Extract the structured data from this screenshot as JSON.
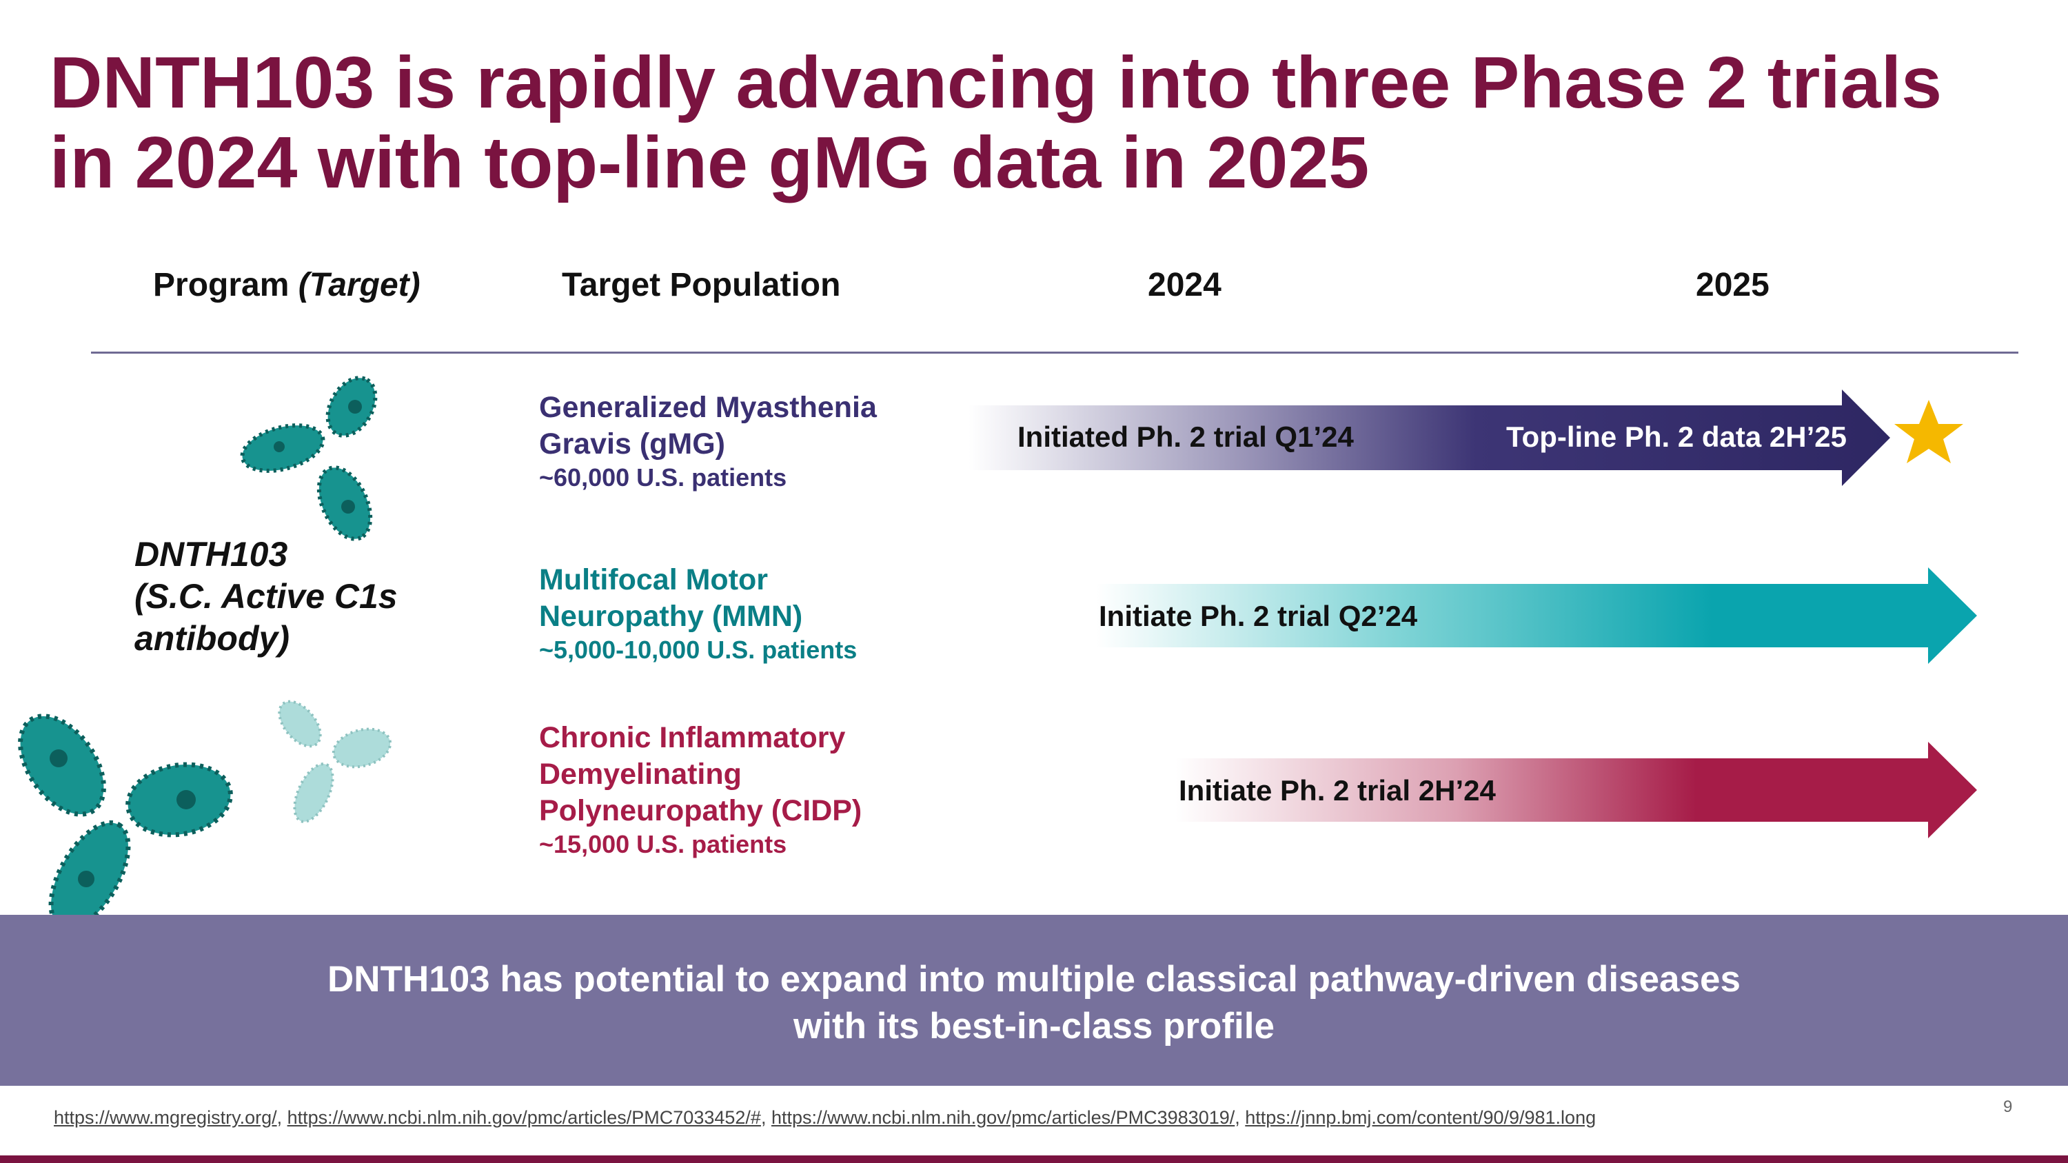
{
  "title": {
    "line1": "DNTH103 is rapidly advancing into three Phase 2 trials",
    "line2": "in 2024 with top-line gMG data in 2025"
  },
  "headers": {
    "program": "Program",
    "program_target": "(Target)",
    "population": "Target Population",
    "year1": "2024",
    "year2": "2025"
  },
  "program": {
    "line1": "DNTH103",
    "line2": "(S.C. Active C1s",
    "line3": "antibody)"
  },
  "populations": [
    {
      "name_line1": "Generalized Myasthenia",
      "name_line2": "Gravis (gMG)",
      "patients": "~60,000 U.S. patients",
      "color": "#3a3072"
    },
    {
      "name_line1": "Multifocal Motor",
      "name_line2": "Neuropathy (MMN)",
      "patients": "~5,000-10,000 U.S. patients",
      "color": "#0a7f86"
    },
    {
      "name_line1": "Chronic Inflammatory",
      "name_line2": "Demyelinating",
      "name_line3": "Polyneuropathy (CIDP)",
      "patients": "~15,000 U.S. patients",
      "color": "#a61c48"
    }
  ],
  "timeline": {
    "gmg_start": "Initiated Ph. 2 trial Q1’24",
    "gmg_end": "Top-line Ph. 2 data 2H’25",
    "mmn_start": "Initiate Ph. 2 trial Q2’24",
    "cidp_start": "Initiate Ph. 2 trial 2H’24"
  },
  "banner": {
    "line1": "DNTH103 has potential to expand into multiple classical pathway-driven diseases",
    "line2": "with its best-in-class profile"
  },
  "references": {
    "ref1": "https://www.mgregistry.org/",
    "ref2": "https://www.ncbi.nlm.nih.gov/pmc/articles/PMC7033452/#",
    "ref3": "https://www.ncbi.nlm.nih.gov/pmc/articles/PMC3983019/",
    "ref4": "https://jnnp.bmj.com/content/90/9/981.long",
    "separator": ", "
  },
  "page_number": "9",
  "colors": {
    "title": "#7a1340",
    "gmg": "#3a3072",
    "mmn": "#0aa4ae",
    "cidp": "#a61c48",
    "banner": "#77719c",
    "star": "#f5b800",
    "antibody": "#17938f"
  },
  "icons": [
    "antibody-icon",
    "star-icon"
  ]
}
